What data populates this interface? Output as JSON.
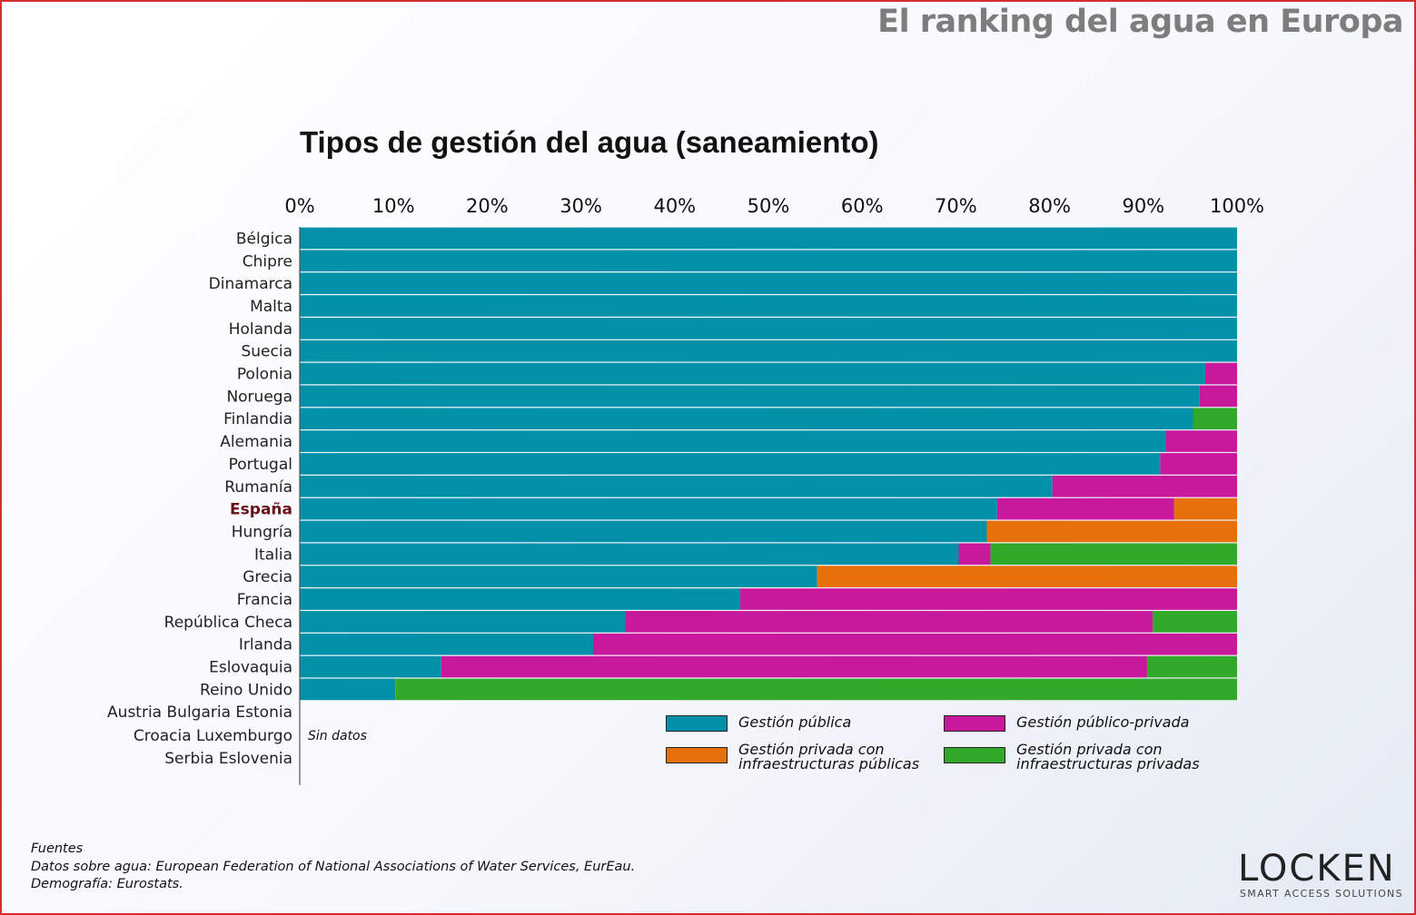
{
  "header": {
    "title": "El ranking del agua en Europa"
  },
  "colors": {
    "publica": "#0090a8",
    "publico_privada": "#c8189c",
    "privada_infra_publicas": "#e5700c",
    "privada_infra_privadas": "#31aa2b",
    "highlight_label": "#6b0f1a",
    "frame": "#d32f2f"
  },
  "chart_data": {
    "type": "bar",
    "orientation": "horizontal",
    "stacked": true,
    "title": "Tipos de gestión del agua (saneamiento)",
    "xlim": [
      0,
      100
    ],
    "x_ticks": [
      "0%",
      "10%",
      "20%",
      "30%",
      "40%",
      "50%",
      "60%",
      "70%",
      "80%",
      "90%",
      "100%"
    ],
    "categories": [
      "Bélgica",
      "Chipre",
      "Dinamarca",
      "Malta",
      "Holanda",
      "Suecia",
      "Polonia",
      "Noruega",
      "Finlandia",
      "Alemania",
      "Portugal",
      "Rumanía",
      "España",
      "Hungría",
      "Italia",
      "Grecia",
      "Francia",
      "República  Checa",
      "Irlanda",
      "Eslovaquia",
      "Reino  Unido"
    ],
    "highlight_category": "España",
    "series": [
      {
        "name": "Gestión pública",
        "color": "#0090a8",
        "values": [
          100,
          100,
          100,
          100,
          100,
          100,
          96.6,
          96,
          95.3,
          92.4,
          91.8,
          80.3,
          74.4,
          73.3,
          70.3,
          55.2,
          47,
          34.7,
          31.3,
          15.1,
          10.2
        ]
      },
      {
        "name": "Gestión público-privada",
        "color": "#c8189c",
        "values": [
          0,
          0,
          0,
          0,
          0,
          0,
          3.4,
          4,
          0,
          7.6,
          8.2,
          19.7,
          18.9,
          0,
          3.4,
          0,
          53,
          56.3,
          68.7,
          75.3,
          0
        ]
      },
      {
        "name": "Gestión privada con infraestructuras públicas",
        "color": "#e5700c",
        "values": [
          0,
          0,
          0,
          0,
          0,
          0,
          0,
          0,
          0,
          0,
          0,
          0,
          6.7,
          26.7,
          0,
          44.8,
          0,
          0,
          0,
          0,
          0
        ]
      },
      {
        "name": "Gestión privada con infraestructuras privadas",
        "color": "#31aa2b",
        "values": [
          0,
          0,
          0,
          0,
          0,
          0,
          0,
          0,
          4.7,
          0,
          0,
          0,
          0,
          0,
          26.3,
          0,
          0,
          9,
          0,
          9.6,
          89.8
        ]
      }
    ],
    "no_data": {
      "lines": [
        "Austria Bulgaria Estonia",
        "Croacia Luxemburgo",
        "Serbia Eslovenia"
      ],
      "label": "Sin datos"
    },
    "legend": {
      "position": "bottom-right",
      "items": [
        {
          "label": "Gestión pública",
          "color": "#0090a8"
        },
        {
          "label": "Gestión público-privada",
          "color": "#c8189c"
        },
        {
          "label": "Gestión privada con infraestructuras públicas",
          "color": "#e5700c"
        },
        {
          "label": "Gestión privada con infraestructuras privadas",
          "color": "#31aa2b"
        }
      ]
    }
  },
  "sources": {
    "heading": "Fuentes",
    "line1": "Datos sobre agua: European Federation of National Associations of Water Services, EurEau.",
    "line2": "Demografía: Eurostats."
  },
  "logo": {
    "word": "LOCKEN",
    "tagline": "SMART ACCESS SOLUTIONS"
  }
}
